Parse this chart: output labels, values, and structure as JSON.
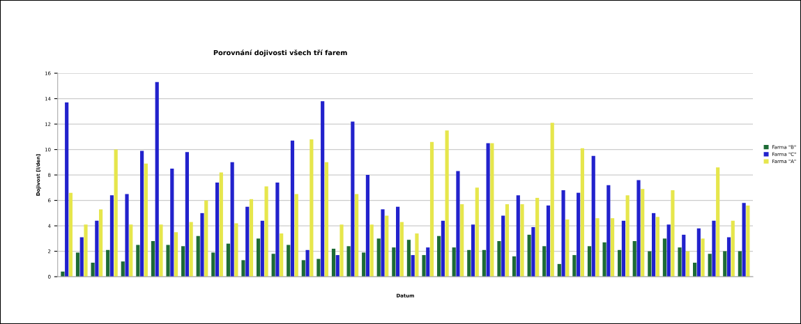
{
  "chart_data": {
    "type": "bar",
    "title": "Porovnání dojivosti všech tří farem",
    "xlabel": "Datum",
    "ylabel": "Dojivost [l/den]",
    "categories": [
      null,
      null,
      null,
      null,
      null,
      null,
      null,
      null,
      null,
      null,
      null,
      null,
      null,
      null,
      null,
      null,
      null,
      null,
      null,
      null,
      null,
      null,
      null,
      null,
      null,
      null,
      null,
      null,
      null,
      null,
      null,
      null,
      null,
      null,
      null,
      null,
      null,
      null,
      null,
      null,
      null,
      null,
      null,
      null,
      null,
      null
    ],
    "series": [
      {
        "name": "Farma \"B\"",
        "color": "#1d6b35",
        "values": [
          0.4,
          1.9,
          1.1,
          2.1,
          1.2,
          2.5,
          2.8,
          2.5,
          2.4,
          3.2,
          1.9,
          2.6,
          1.3,
          3.0,
          1.8,
          2.5,
          1.3,
          1.4,
          2.2,
          2.4,
          1.9,
          3.0,
          2.3,
          2.9,
          1.7,
          3.2,
          2.3,
          2.1,
          2.1,
          2.8,
          1.6,
          3.3,
          2.4,
          1.0,
          1.7,
          2.4,
          2.7,
          2.1,
          2.8,
          2.0,
          3.0,
          2.3,
          1.1,
          1.8,
          2.0,
          2.0
        ]
      },
      {
        "name": "Farma \"C\"",
        "color": "#2222cc",
        "values": [
          13.7,
          3.1,
          4.4,
          6.4,
          6.5,
          9.9,
          15.3,
          8.5,
          9.8,
          5.0,
          7.4,
          9.0,
          5.5,
          4.4,
          7.4,
          10.7,
          2.1,
          13.8,
          1.7,
          12.2,
          8.0,
          5.3,
          5.5,
          1.7,
          2.3,
          4.4,
          8.3,
          4.1,
          10.5,
          4.8,
          6.4,
          3.9,
          5.6,
          6.8,
          6.6,
          9.5,
          7.2,
          4.4,
          7.6,
          5.0,
          4.1,
          3.3,
          3.8,
          4.4,
          3.1,
          5.8
        ]
      },
      {
        "name": "Farma \"A\"",
        "color": "#e6e64c",
        "values": [
          6.6,
          4.1,
          5.3,
          10.0,
          4.1,
          8.9,
          4.1,
          3.5,
          4.3,
          6.0,
          8.2,
          4.2,
          6.1,
          7.1,
          3.4,
          6.5,
          10.8,
          9.0,
          4.1,
          6.5,
          4.1,
          4.8,
          4.3,
          3.4,
          10.6,
          11.5,
          5.7,
          7.0,
          10.5,
          5.7,
          5.7,
          6.2,
          12.1,
          4.5,
          10.1,
          4.6,
          4.6,
          6.4,
          6.9,
          4.7,
          6.8,
          2.0,
          3.0,
          8.6,
          4.4,
          5.6
        ]
      }
    ],
    "ylim": [
      0,
      16
    ],
    "yticks": [
      0,
      2,
      4,
      6,
      8,
      10,
      12,
      14,
      16
    ],
    "grid": "y",
    "legend": "right"
  }
}
